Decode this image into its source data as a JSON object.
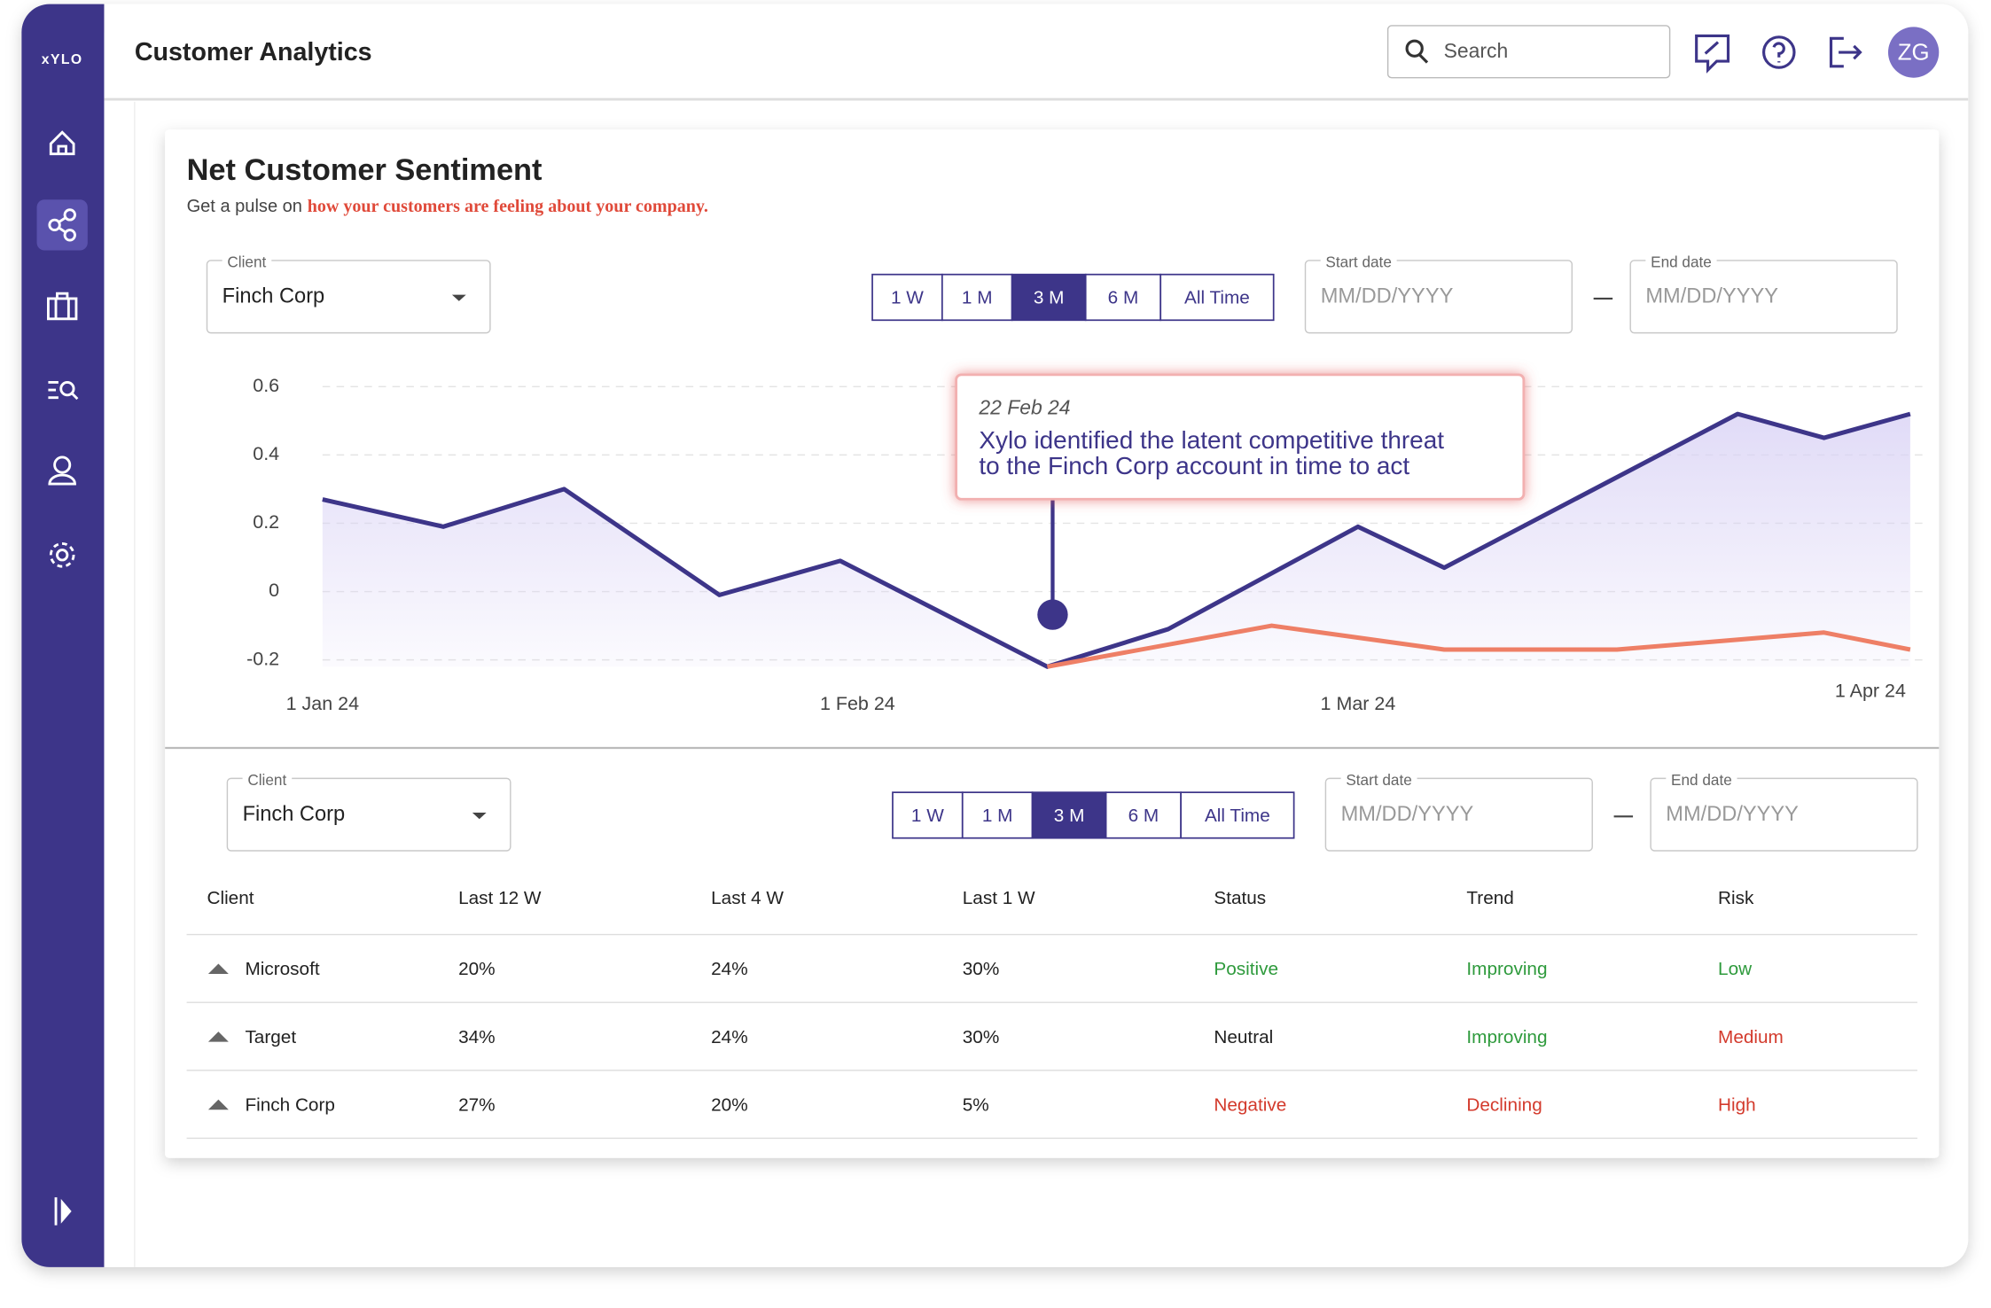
{
  "sidebar": {
    "logo": "xYLO"
  },
  "header": {
    "title": "Customer Analytics",
    "search_placeholder": "Search",
    "avatar": "ZG"
  },
  "card": {
    "title": "Net Customer Sentiment",
    "subtitle_lead": "Get a pulse on",
    "subtitle_highlight": "how your customers are feeling about your company."
  },
  "chart_filter": {
    "client_label": "Client",
    "client_value": "Finch Corp",
    "ranges": [
      "1 W",
      "1 M",
      "3 M",
      "6 M",
      "All Time"
    ],
    "active": 2,
    "start_label": "Start date",
    "start_placeholder": "MM/DD/YYYY",
    "end_label": "End date",
    "end_placeholder": "MM/DD/YYYY"
  },
  "chart_data": {
    "type": "line",
    "xlim": [
      "2024-01-01",
      "2024-04-03"
    ],
    "xticks": [
      {
        "value": "2024-01-01",
        "label": "1 Jan 24"
      },
      {
        "value": "2024-02-01",
        "label": "1 Feb 24"
      },
      {
        "value": "2024-03-01",
        "label": "1 Mar 24"
      },
      {
        "value": "2024-04-01",
        "label": "1 Apr 24"
      }
    ],
    "ylim": [
      -0.22,
      0.62
    ],
    "yticks": [
      0.6,
      0.4,
      0.2,
      0,
      -0.2
    ],
    "grid": true,
    "series": [
      {
        "color": "#3d3589",
        "area": true,
        "x": [
          "2024-01-01",
          "2024-01-08",
          "2024-01-15",
          "2024-01-24",
          "2024-01-31",
          "2024-02-12",
          "2024-02-19",
          "2024-03-01",
          "2024-03-06",
          "2024-03-23",
          "2024-03-28",
          "2024-04-02"
        ],
        "values": [
          0.27,
          0.19,
          0.3,
          -0.01,
          0.09,
          -0.22,
          -0.11,
          0.19,
          0.07,
          0.52,
          0.45,
          0.52
        ]
      },
      {
        "color": "#ee7f66",
        "area": false,
        "x": [
          "2024-02-12",
          "2024-02-25",
          "2024-03-06",
          "2024-03-16",
          "2024-03-28",
          "2024-04-02"
        ],
        "values": [
          -0.22,
          -0.1,
          -0.17,
          -0.17,
          -0.12,
          -0.17
        ]
      }
    ],
    "annotation": {
      "date": "22 Feb 24",
      "lines": [
        "Xylo identified the latent competitive threat",
        "to the Finch Corp account in time to act"
      ]
    }
  },
  "table_filter": {
    "client_label": "Client",
    "client_value": "Finch Corp",
    "ranges": [
      "1 W",
      "1 M",
      "3 M",
      "6 M",
      "All Time"
    ],
    "active": 2,
    "start_label": "Start date",
    "start_placeholder": "MM/DD/YYYY",
    "end_label": "End date",
    "end_placeholder": "MM/DD/YYYY"
  },
  "table": {
    "headers": [
      "Client",
      "Last 12 W",
      "Last 4 W",
      "Last 1 W",
      "Status",
      "Trend",
      "Risk"
    ],
    "rows": [
      [
        "Microsoft",
        "20%",
        "24%",
        "30%",
        "Positive",
        "Improving",
        "Low"
      ],
      [
        "Target",
        "34%",
        "24%",
        "30%",
        "Neutral",
        "Improving",
        "Medium"
      ],
      [
        "Finch Corp",
        "27%",
        "20%",
        "5%",
        "Negative",
        "Declining",
        "High"
      ]
    ],
    "row_colors": [
      [
        "#2e9a3c",
        "#2e9a3c",
        "#2e9a3c"
      ],
      [
        "#222222",
        "#2e9a3c",
        "#d33a2c"
      ],
      [
        "#d33a2c",
        "#d33a2c",
        "#d33a2c"
      ]
    ]
  }
}
